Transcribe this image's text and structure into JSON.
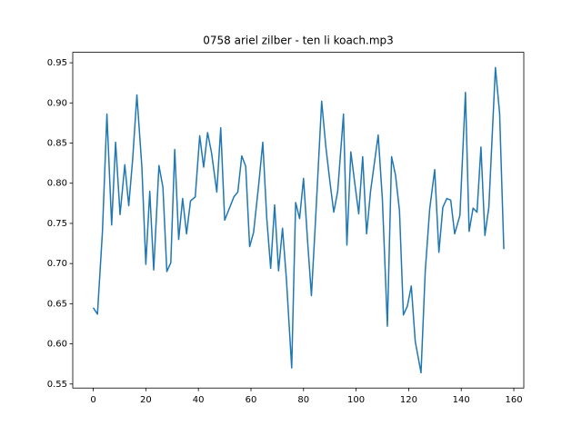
{
  "chart_data": {
    "type": "line",
    "title": "0758 ariel zilber - ten li koach.mp3",
    "x": [
      0,
      1.6,
      3.5,
      5.2,
      7,
      8.5,
      10.2,
      12,
      13.5,
      15,
      16.6,
      18.5,
      20,
      21.5,
      23,
      25,
      26.5,
      28,
      29.5,
      31,
      32.5,
      34,
      35.5,
      37,
      38.8,
      40.5,
      42,
      43.5,
      45,
      47,
      48.5,
      50,
      53.5,
      55,
      56.5,
      58,
      59.5,
      61,
      63,
      64.5,
      66,
      67.5,
      69,
      70.5,
      72,
      73.5,
      75.5,
      77,
      78.5,
      80,
      81.5,
      83,
      84.5,
      86.9,
      88.5,
      90,
      91.5,
      93,
      95.2,
      96.5,
      98,
      99.5,
      101,
      102.5,
      104,
      105.5,
      108.4,
      110,
      111.9,
      113.5,
      115,
      116.5,
      118,
      119.5,
      121,
      122.5,
      124.7,
      126.3,
      128,
      129.9,
      131.5,
      133,
      134.5,
      136,
      137.5,
      139.5,
      141.6,
      143,
      144.5,
      146,
      147.5,
      149,
      150.5,
      153,
      154.6,
      156.2
    ],
    "series": [
      {
        "color": "#1f77b4",
        "values": [
          0.645,
          0.637,
          0.74,
          0.886,
          0.748,
          0.851,
          0.761,
          0.823,
          0.772,
          0.83,
          0.91,
          0.82,
          0.699,
          0.79,
          0.692,
          0.822,
          0.795,
          0.69,
          0.701,
          0.842,
          0.73,
          0.781,
          0.737,
          0.778,
          0.783,
          0.859,
          0.82,
          0.863,
          0.838,
          0.789,
          0.869,
          0.754,
          0.783,
          0.789,
          0.834,
          0.821,
          0.721,
          0.739,
          0.8,
          0.851,
          0.757,
          0.694,
          0.773,
          0.691,
          0.744,
          0.68,
          0.57,
          0.776,
          0.756,
          0.806,
          0.73,
          0.66,
          0.75,
          0.902,
          0.845,
          0.803,
          0.764,
          0.79,
          0.886,
          0.723,
          0.839,
          0.8,
          0.762,
          0.833,
          0.737,
          0.79,
          0.86,
          0.78,
          0.622,
          0.833,
          0.81,
          0.766,
          0.636,
          0.647,
          0.672,
          0.603,
          0.564,
          0.69,
          0.768,
          0.817,
          0.714,
          0.77,
          0.781,
          0.779,
          0.737,
          0.76,
          0.913,
          0.74,
          0.769,
          0.764,
          0.845,
          0.735,
          0.77,
          0.944,
          0.887,
          0.718
        ]
      }
    ],
    "xlim": [
      -7.8,
      163.8
    ],
    "ylim": [
      0.545,
      0.963
    ],
    "xticks": [
      0,
      20,
      40,
      60,
      80,
      100,
      120,
      140,
      160
    ],
    "yticks": [
      0.55,
      {
        "value": 0.6,
        "label": "0.60"
      },
      0.65,
      {
        "value": 0.7,
        "label": "0.70"
      },
      0.75,
      {
        "value": 0.8,
        "label": "0.80"
      },
      0.85,
      {
        "value": 0.9,
        "label": "0.90"
      },
      0.95
    ]
  }
}
